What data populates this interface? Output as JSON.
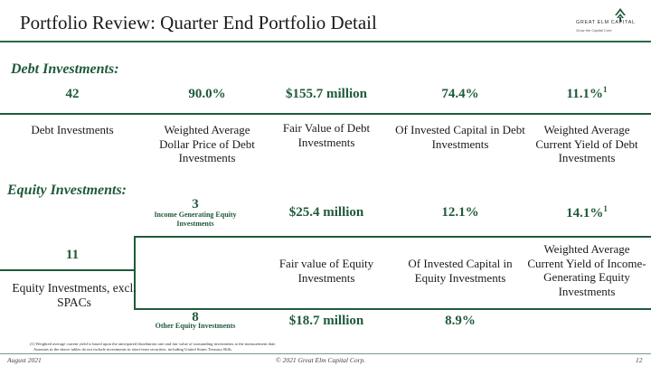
{
  "header": {
    "title": "Portfolio Review: Quarter End Portfolio Detail",
    "logo_text": "GREAT ELM CAPITAL",
    "logo_tagline": "Grow the Capital Core"
  },
  "debt": {
    "section_label": "Debt Investments:",
    "stats": [
      {
        "value": "42",
        "label": "Debt Investments"
      },
      {
        "value": "90.0%",
        "label": "Weighted Average Dollar Price of Debt Investments"
      },
      {
        "value": "$155.7 million",
        "label": "Fair Value of Debt Investments"
      },
      {
        "value": "74.4%",
        "label": "Of Invested Capital in Debt Investments"
      },
      {
        "value": "11.1%",
        "sup": "1",
        "label": "Weighted Average Current Yield of Debt Investments"
      }
    ]
  },
  "equity": {
    "section_label": "Equity Investments:",
    "total_value": "11",
    "total_label": "Equity Investments, excl. SPACs",
    "income_count": "3",
    "income_label": "Income Generating Equity Investments",
    "other_count": "8",
    "other_label": "Other Equity Investments",
    "income_fair_value": "$25.4 million",
    "other_fair_value": "$18.7 million",
    "fair_value_label": "Fair value of Equity Investments",
    "income_pct": "12.1%",
    "other_pct": "8.9%",
    "pct_label": "Of Invested Capital in Equity Investments",
    "yield_value": "14.1%",
    "yield_sup": "1",
    "yield_label": "Weighted Average Current Yield of Income-Generating Equity Investments"
  },
  "footnote": {
    "line1": "(1) Weighted average current yield is based upon the anticipated distribution rate and fair value of outstanding investments at the measurement date.",
    "line2": "Amounts in the above tables do not include investments in short-term securities, including United States Treasury Bills."
  },
  "footer": {
    "date": "August 2021",
    "copyright": "© 2021 Great Elm Capital Corp.",
    "page": "12"
  },
  "colors": {
    "accent": "#1f5a3a",
    "rule": "#2a6a45"
  }
}
